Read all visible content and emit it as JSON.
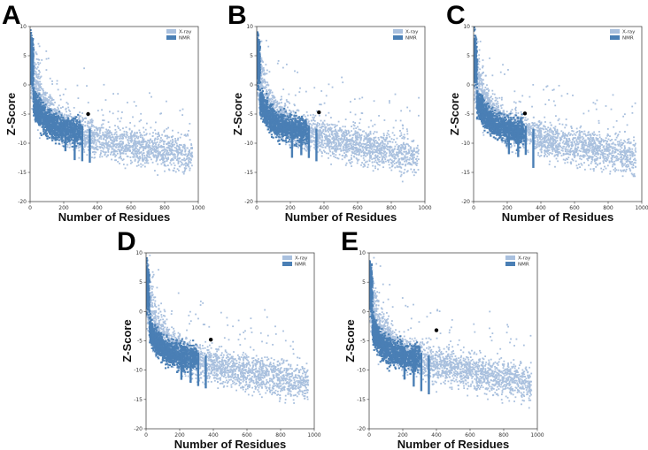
{
  "chart_data": [
    {
      "panel": "A",
      "type": "scatter",
      "xlabel": "Number of Residues",
      "ylabel": "Z-Score",
      "xlim": [
        0,
        1000
      ],
      "ylim": [
        -20,
        10
      ],
      "xticks": [
        0,
        200,
        400,
        600,
        800,
        1000
      ],
      "yticks": [
        10,
        5,
        0,
        -5,
        -10,
        -15,
        -20
      ],
      "xtick_labels": [
        "0",
        "200",
        "400",
        "600",
        "800",
        "1000"
      ],
      "ytick_labels": [
        "10",
        "5",
        "0",
        "-5",
        "-10",
        "-15",
        "-20"
      ],
      "legend": {
        "position": "top-right",
        "entries": [
          {
            "label": "X-ray",
            "color": "#a9c0de"
          },
          {
            "label": "NMR",
            "color": "#4a7fb5"
          }
        ]
      },
      "highlight": {
        "x": 345,
        "y": -5.0
      }
    },
    {
      "panel": "B",
      "type": "scatter",
      "xlabel": "Number of Residues",
      "ylabel": "Z-Score",
      "xlim": [
        0,
        1000
      ],
      "ylim": [
        -20,
        10
      ],
      "xticks": [
        0,
        200,
        400,
        600,
        800,
        1000
      ],
      "yticks": [
        10,
        5,
        0,
        -5,
        -10,
        -15,
        -20
      ],
      "xtick_labels": [
        "0",
        "200",
        "400",
        "600",
        "800",
        "1000"
      ],
      "ytick_labels": [
        "10",
        "5",
        "0",
        "-5",
        "-10",
        "-15",
        "-20"
      ],
      "legend": {
        "position": "top-right",
        "entries": [
          {
            "label": "X-ray",
            "color": "#a9c0de"
          },
          {
            "label": "NMR",
            "color": "#4a7fb5"
          }
        ]
      },
      "highlight": {
        "x": 370,
        "y": -4.7
      }
    },
    {
      "panel": "C",
      "type": "scatter",
      "xlabel": "Number of Residues",
      "ylabel": "Z-Score",
      "xlim": [
        0,
        1000
      ],
      "ylim": [
        -20,
        10
      ],
      "xticks": [
        0,
        200,
        400,
        600,
        800,
        1000
      ],
      "yticks": [
        10,
        5,
        0,
        -5,
        -10,
        -15,
        -20
      ],
      "xtick_labels": [
        "0",
        "200",
        "400",
        "600",
        "800",
        "1000"
      ],
      "ytick_labels": [
        "10",
        "5",
        "0",
        "-5",
        "-10",
        "-15",
        "-20"
      ],
      "legend": {
        "position": "top-right",
        "entries": [
          {
            "label": "X-ray",
            "color": "#a9c0de"
          },
          {
            "label": "NMR",
            "color": "#4a7fb5"
          }
        ]
      },
      "highlight": {
        "x": 305,
        "y": -4.9
      }
    },
    {
      "panel": "D",
      "type": "scatter",
      "xlabel": "Number of Residues",
      "ylabel": "Z-Score",
      "xlim": [
        0,
        1000
      ],
      "ylim": [
        -20,
        10
      ],
      "xticks": [
        0,
        200,
        400,
        600,
        800,
        1000
      ],
      "yticks": [
        10,
        5,
        0,
        -5,
        -10,
        -15,
        -20
      ],
      "xtick_labels": [
        "0",
        "200",
        "400",
        "600",
        "800",
        "1000"
      ],
      "ytick_labels": [
        "10",
        "5",
        "0",
        "-5",
        "-10",
        "-15",
        "-20"
      ],
      "legend": {
        "position": "top-right",
        "entries": [
          {
            "label": "X-ray",
            "color": "#a9c0de"
          },
          {
            "label": "NMR",
            "color": "#4a7fb5"
          }
        ]
      },
      "highlight": {
        "x": 385,
        "y": -4.8
      }
    },
    {
      "panel": "E",
      "type": "scatter",
      "xlabel": "Number of Residues",
      "ylabel": "Z-Score",
      "xlim": [
        0,
        1000
      ],
      "ylim": [
        -20,
        10
      ],
      "xticks": [
        0,
        200,
        400,
        600,
        800,
        1000
      ],
      "yticks": [
        10,
        5,
        0,
        -5,
        -10,
        -15,
        -20
      ],
      "xtick_labels": [
        "0",
        "200",
        "400",
        "600",
        "800",
        "1000"
      ],
      "ytick_labels": [
        "10",
        "5",
        "0",
        "-5",
        "-10",
        "-15",
        "-20"
      ],
      "legend": {
        "position": "top-right",
        "entries": [
          {
            "label": "X-ray",
            "color": "#a9c0de"
          },
          {
            "label": "NMR",
            "color": "#4a7fb5"
          }
        ]
      },
      "highlight": {
        "x": 400,
        "y": -3.2
      }
    }
  ]
}
